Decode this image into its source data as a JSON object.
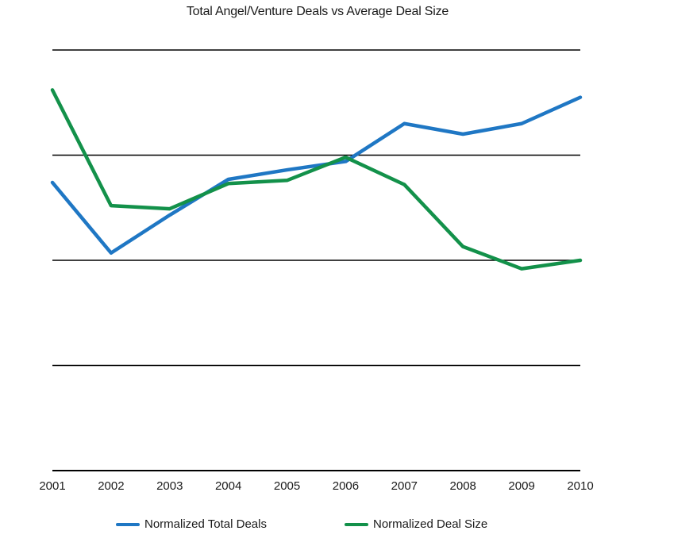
{
  "chart_data": {
    "type": "line",
    "title": "Total Angel/Venture Deals vs Average Deal Size",
    "xlabel": "",
    "ylabel": "",
    "x": [
      "2001",
      "2002",
      "2003",
      "2004",
      "2005",
      "2006",
      "2007",
      "2008",
      "2009",
      "2010"
    ],
    "ylim": [
      0,
      4
    ],
    "grid": true,
    "legend_position": "bottom",
    "series": [
      {
        "name": "Normalized Total Deals",
        "color": "#1f77c4",
        "values": [
          2.74,
          2.07,
          2.43,
          2.77,
          2.86,
          2.94,
          3.3,
          3.2,
          3.3,
          3.55
        ]
      },
      {
        "name": "Normalized Deal Size",
        "color": "#13914a",
        "values": [
          3.62,
          2.52,
          2.49,
          2.73,
          2.76,
          2.98,
          2.72,
          2.13,
          1.92,
          2.0
        ]
      }
    ]
  }
}
